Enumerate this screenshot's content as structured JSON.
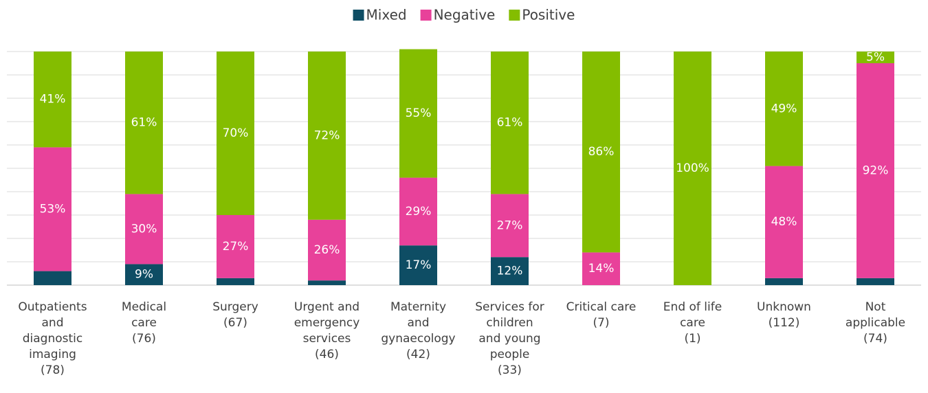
{
  "chart_data": {
    "type": "stacked_bar",
    "categories": [
      "Outpatients\nand\ndiagnostic\nimaging\n(78)",
      "Medical\ncare\n(76)",
      "Surgery\n(67)",
      "Urgent and\nemergency\nservices\n(46)",
      "Maternity\nand\ngynaecology\n(42)",
      "Services for\nchildren\nand young\npeople\n(33)",
      "Critical care\n(7)",
      "End of life\ncare\n(1)",
      "Unknown\n(112)",
      "Not\napplicable\n(74)"
    ],
    "series": [
      {
        "name": "Mixed",
        "color": "#0e4d64",
        "values": [
          6,
          9,
          3,
          2,
          17,
          12,
          0,
          0,
          3,
          3
        ],
        "value_labels": [
          null,
          "9%",
          null,
          null,
          "17%",
          "12%",
          null,
          null,
          null,
          null
        ]
      },
      {
        "name": "Negative",
        "color": "#e8419a",
        "values": [
          53,
          30,
          27,
          26,
          29,
          27,
          14,
          0,
          48,
          92
        ],
        "value_labels": [
          "53%",
          "30%",
          "27%",
          "26%",
          "29%",
          "27%",
          "14%",
          null,
          "48%",
          "92%"
        ]
      },
      {
        "name": "Positive",
        "color": "#84bd00",
        "values": [
          41,
          61,
          70,
          72,
          55,
          61,
          86,
          100,
          49,
          5
        ],
        "value_labels": [
          "41%",
          "61%",
          "70%",
          "72%",
          "55%",
          "61%",
          "86%",
          "100%",
          "49%",
          "5%"
        ]
      }
    ],
    "ylim": [
      0,
      100
    ],
    "yticks": [
      0,
      10,
      20,
      30,
      40,
      50,
      60,
      70,
      80,
      90,
      100
    ],
    "grid": true,
    "legend": "top"
  }
}
